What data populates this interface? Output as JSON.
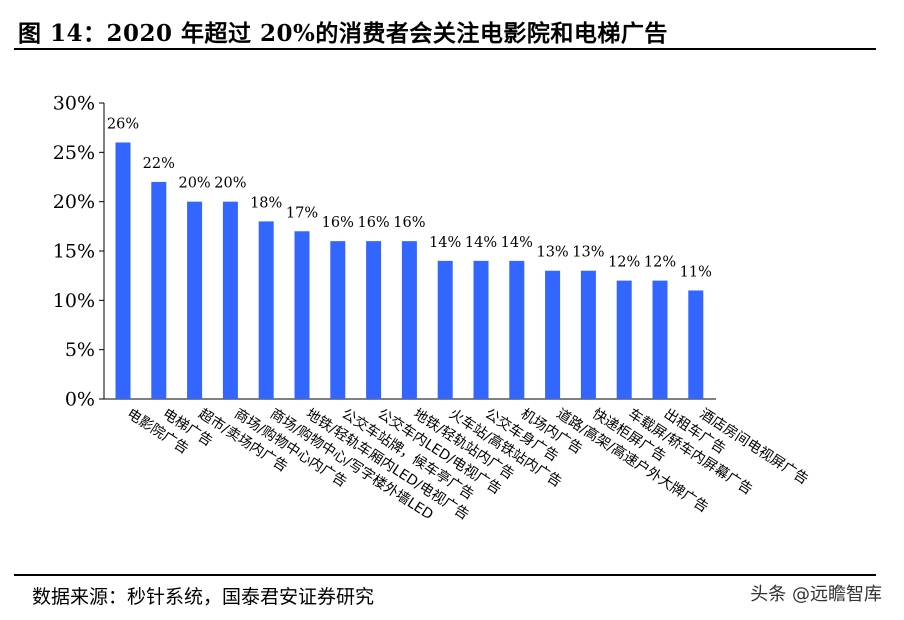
{
  "header": {
    "title": "图 14：2020 年超过 20%的消费者会关注电影院和电梯广告"
  },
  "footer": {
    "source": "数据来源：秒针系统，国泰君安证券研究",
    "watermark": "头条 @远瞻智库"
  },
  "chart_data": {
    "type": "bar",
    "color": "#3366ff",
    "ylim": [
      0,
      30
    ],
    "yticks": [
      "0%",
      "5%",
      "10%",
      "15%",
      "20%",
      "25%",
      "30%"
    ],
    "categories": [
      "电影院广告",
      "电梯广告",
      "超市/卖场内广告",
      "商场/购物中心内广告",
      "商场/购物中心/写字楼外墙LED",
      "地铁/轻轨车厢内LED/电视广告",
      "公交车站牌，候车亭广告",
      "公交车内LED/电视广告",
      "地铁/轻轨站内广告",
      "火车站/高铁站内广告",
      "公交车身广告",
      "机场内广告",
      "道路/高架/高速户外大牌广告",
      "快递柜屏广告",
      "车载屏/轿车内屏幕广告",
      "出租车广告",
      "酒店房间电视屏广告"
    ],
    "values": [
      26,
      22,
      20,
      20,
      18,
      17,
      16,
      16,
      16,
      14,
      14,
      14,
      13,
      13,
      12,
      12,
      11
    ],
    "labels": [
      "26%",
      "22%",
      "20%",
      "20%",
      "18%",
      "17%",
      "16%",
      "16%",
      "16%",
      "14%",
      "14%",
      "14%",
      "13%",
      "13%",
      "12%",
      "12%",
      "11%"
    ]
  }
}
